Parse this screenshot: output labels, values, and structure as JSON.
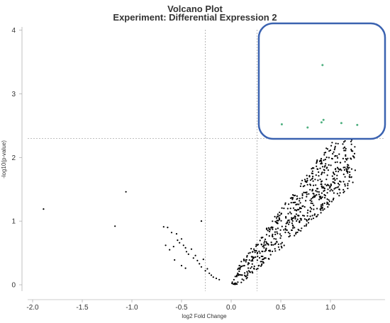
{
  "chart_data": {
    "type": "scatter",
    "title": "Volcano Plot",
    "subtitle": "Experiment: Differential Expression 2",
    "xlabel": "log2 Fold Change",
    "ylabel": "-log10(p-value)",
    "xlim": [
      -2.05,
      1.55
    ],
    "ylim": [
      -0.1,
      4.05
    ],
    "x_ticks": [
      "-2.0",
      "-1.5",
      "-1.0",
      "-0.5",
      "0.0",
      "0.5",
      "1.0"
    ],
    "y_ticks": [
      "0",
      "1",
      "2",
      "3",
      "4"
    ],
    "grid": false,
    "thresholds": {
      "log2fc": [
        -0.26,
        0.26
      ],
      "neg_log10_p": 2.3
    },
    "highlight_box": {
      "color": "#3a62b0",
      "x_range": [
        0.26,
        1.5
      ],
      "y_range": [
        2.3,
        4.05
      ]
    },
    "significant_points": {
      "color": "#4fb080",
      "points": [
        [
          0.92,
          3.45
        ],
        [
          0.51,
          2.52
        ],
        [
          0.77,
          2.47
        ],
        [
          0.91,
          2.55
        ],
        [
          0.93,
          2.59
        ],
        [
          1.11,
          2.54
        ],
        [
          1.27,
          2.51
        ]
      ]
    },
    "other_points": {
      "color": "#000000",
      "points": [
        [
          -1.89,
          1.19
        ],
        [
          -1.17,
          0.92
        ],
        [
          -1.06,
          1.46
        ],
        [
          -0.68,
          0.91
        ],
        [
          -0.64,
          0.9
        ],
        [
          -0.6,
          0.82
        ],
        [
          -0.55,
          0.8
        ],
        [
          -0.54,
          0.7
        ],
        [
          -0.52,
          0.66
        ],
        [
          -0.5,
          0.72
        ],
        [
          -0.48,
          0.62
        ],
        [
          -0.46,
          0.58
        ],
        [
          -0.45,
          0.52
        ],
        [
          -0.43,
          0.48
        ],
        [
          -0.4,
          0.56
        ],
        [
          -0.38,
          0.42
        ],
        [
          -0.36,
          0.46
        ],
        [
          -0.34,
          0.38
        ],
        [
          -0.32,
          0.33
        ],
        [
          -0.3,
          1.0
        ],
        [
          -0.3,
          0.28
        ],
        [
          -0.28,
          0.4
        ],
        [
          -0.26,
          0.22
        ],
        [
          -0.24,
          0.25
        ],
        [
          -0.22,
          0.18
        ],
        [
          -0.2,
          0.15
        ],
        [
          -0.18,
          0.12
        ],
        [
          -0.15,
          0.1
        ],
        [
          -0.12,
          0.08
        ],
        [
          -0.5,
          0.3
        ],
        [
          -0.46,
          0.26
        ],
        [
          -0.57,
          0.39
        ],
        [
          -0.62,
          0.55
        ],
        [
          -0.58,
          0.6
        ],
        [
          -0.66,
          0.62
        ]
      ]
    },
    "positive_cloud": {
      "color": "#000000",
      "count": 700,
      "x_range": [
        0.0,
        1.25
      ],
      "approx_neg_log10_p": "≈ 1.7 × log2FC, scatter ±0.35"
    }
  }
}
